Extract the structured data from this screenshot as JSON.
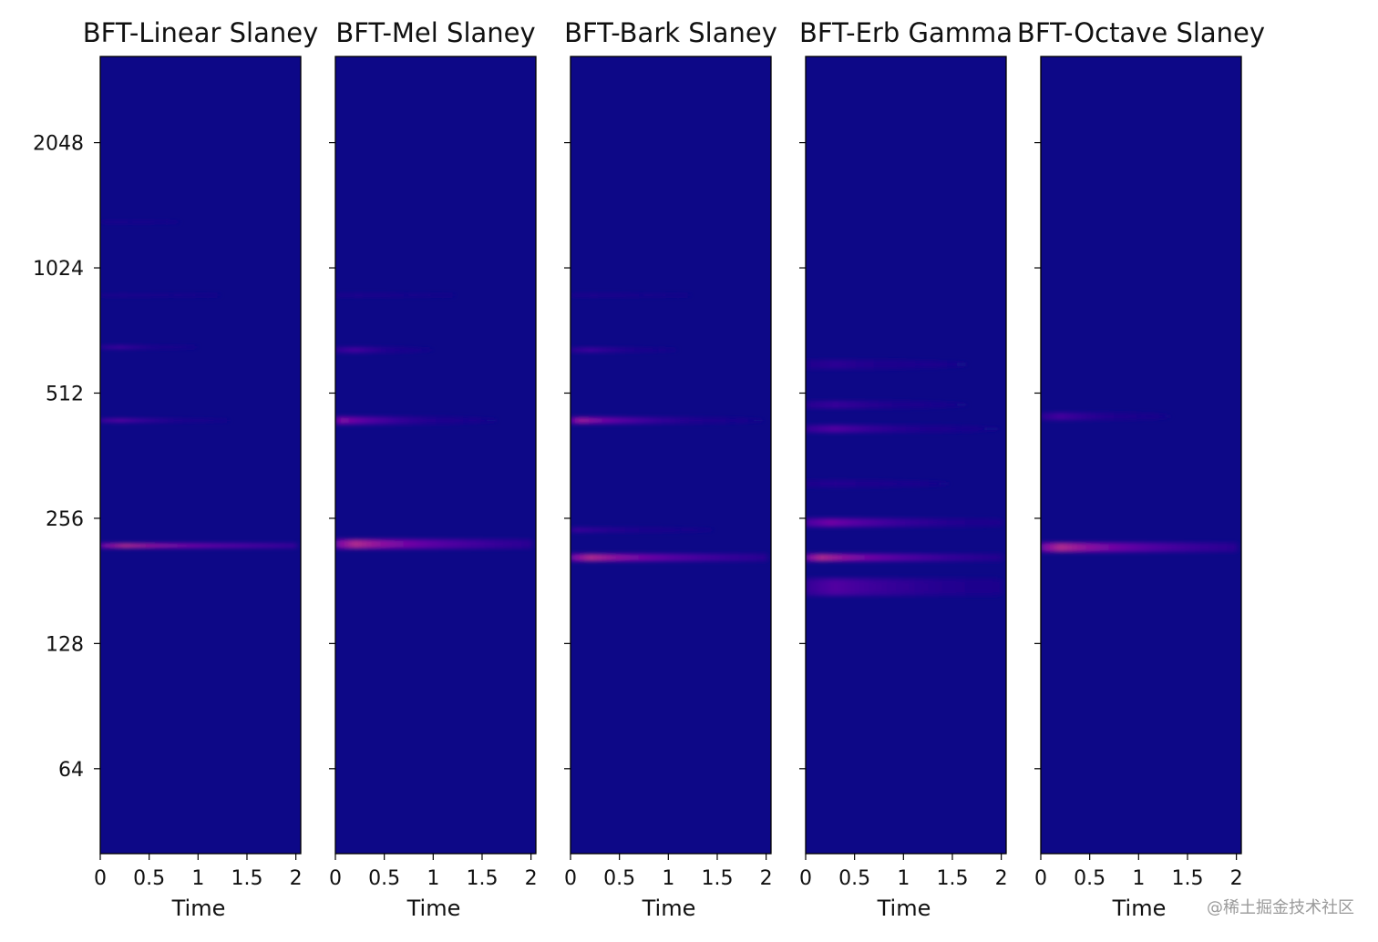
{
  "chart_data": {
    "type": "heatmap",
    "colormap": "plasma",
    "background_color": "#0d0887",
    "shared_y": true,
    "yscale": "log2",
    "yticks": [
      64,
      128,
      256,
      512,
      1024,
      2048
    ],
    "ylim": [
      40,
      3300
    ],
    "xticks": [
      "0",
      "0.5",
      "1",
      "1.5",
      "2"
    ],
    "xlim": [
      0,
      2.05
    ],
    "panels": [
      {
        "title": "BFT-Linear Slaney",
        "xlabel": "Time",
        "bands": [
          {
            "freq": 220,
            "intensity": 1.0,
            "width": 0.055,
            "peak_t": 0.25,
            "decay": 0.9
          },
          {
            "freq": 440,
            "intensity": 0.45,
            "width": 0.04,
            "peak_t": 0.2,
            "decay": 2.5
          },
          {
            "freq": 660,
            "intensity": 0.3,
            "width": 0.035,
            "peak_t": 0.2,
            "decay": 3.0
          },
          {
            "freq": 880,
            "intensity": 0.1,
            "width": 0.03,
            "peak_t": 0.2,
            "decay": 1.2
          },
          {
            "freq": 1320,
            "intensity": 0.06,
            "width": 0.03,
            "peak_t": 0.2,
            "decay": 1.2
          }
        ]
      },
      {
        "title": "BFT-Mel Slaney",
        "xlabel": "Time",
        "bands": [
          {
            "freq": 222,
            "intensity": 1.0,
            "width": 0.1,
            "peak_t": 0.2,
            "decay": 1.1
          },
          {
            "freq": 440,
            "intensity": 0.68,
            "width": 0.08,
            "peak_t": 0.05,
            "decay": 2.0
          },
          {
            "freq": 650,
            "intensity": 0.3,
            "width": 0.06,
            "peak_t": 0.2,
            "decay": 3.0
          },
          {
            "freq": 880,
            "intensity": 0.1,
            "width": 0.04,
            "peak_t": 0.2,
            "decay": 1.2
          }
        ]
      },
      {
        "title": "BFT-Bark Slaney",
        "xlabel": "Time",
        "bands": [
          {
            "freq": 206,
            "intensity": 1.0,
            "width": 0.08,
            "peak_t": 0.2,
            "decay": 1.1
          },
          {
            "freq": 240,
            "intensity": 0.25,
            "width": 0.05,
            "peak_t": 0.05,
            "decay": 1.5
          },
          {
            "freq": 440,
            "intensity": 0.85,
            "width": 0.07,
            "peak_t": 0.1,
            "decay": 1.8
          },
          {
            "freq": 650,
            "intensity": 0.28,
            "width": 0.05,
            "peak_t": 0.2,
            "decay": 2.5
          },
          {
            "freq": 880,
            "intensity": 0.1,
            "width": 0.04,
            "peak_t": 0.2,
            "decay": 1.2
          }
        ]
      },
      {
        "title": "BFT-Erb Gamma",
        "xlabel": "Time",
        "bands": [
          {
            "freq": 206,
            "intensity": 1.0,
            "width": 0.08,
            "peak_t": 0.15,
            "decay": 1.2
          },
          {
            "freq": 250,
            "intensity": 0.55,
            "width": 0.09,
            "peak_t": 0.25,
            "decay": 1.3
          },
          {
            "freq": 175,
            "intensity": 0.35,
            "width": 0.18,
            "peak_t": 0.3,
            "decay": 1.0
          },
          {
            "freq": 420,
            "intensity": 0.35,
            "width": 0.08,
            "peak_t": 0.3,
            "decay": 1.5
          },
          {
            "freq": 480,
            "intensity": 0.22,
            "width": 0.08,
            "peak_t": 0.3,
            "decay": 1.5
          },
          {
            "freq": 600,
            "intensity": 0.15,
            "width": 0.1,
            "peak_t": 0.3,
            "decay": 1.2
          },
          {
            "freq": 310,
            "intensity": 0.12,
            "width": 0.08,
            "peak_t": 0.3,
            "decay": 1.2
          }
        ]
      },
      {
        "title": "BFT-Octave Slaney",
        "xlabel": "Time",
        "bands": [
          {
            "freq": 218,
            "intensity": 1.0,
            "width": 0.1,
            "peak_t": 0.2,
            "decay": 1.1
          },
          {
            "freq": 450,
            "intensity": 0.28,
            "width": 0.08,
            "peak_t": 0.2,
            "decay": 2.0
          }
        ]
      }
    ]
  },
  "ylabels": [
    "64",
    "128",
    "256",
    "512",
    "1024",
    "2048"
  ],
  "watermark": "@稀土掘金技术社区"
}
